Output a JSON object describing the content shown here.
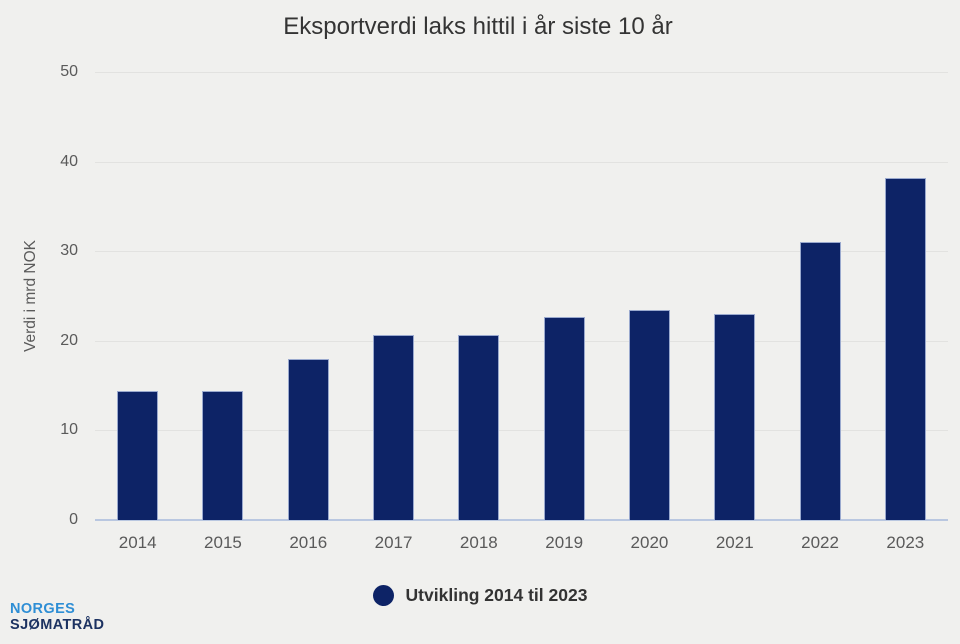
{
  "chart_data": {
    "type": "bar",
    "title": "Eksportverdi laks hittil i år siste 10 år",
    "xlabel": "",
    "ylabel": "Verdi i mrd NOK",
    "categories": [
      "2014",
      "2015",
      "2016",
      "2017",
      "2018",
      "2019",
      "2020",
      "2021",
      "2022",
      "2023"
    ],
    "values": [
      14.4,
      14.4,
      18.0,
      20.7,
      20.7,
      22.7,
      23.4,
      23.0,
      31.0,
      38.2
    ],
    "ylim": [
      0,
      50
    ],
    "yticks": [
      0,
      10,
      20,
      30,
      40,
      50
    ],
    "grid": true,
    "legend": {
      "position": "bottom",
      "items": [
        {
          "label": "Utvikling 2014 til 2023",
          "marker": "circle-icon"
        }
      ]
    }
  },
  "colors": {
    "background": "#f0f0ee",
    "bar": "#0d2366",
    "bar_border": "#9aa9ce",
    "axis_line": "#b9c7e0",
    "gridline": "#e2e2e0",
    "title_text": "#343434",
    "axis_text": "#5a5a5a",
    "legend_text": "#333333",
    "logo_blue": "#2e8ed5",
    "logo_navy": "#1c3261"
  },
  "branding": {
    "line1": "NORGES",
    "line2": "SJØMATRÅD"
  }
}
